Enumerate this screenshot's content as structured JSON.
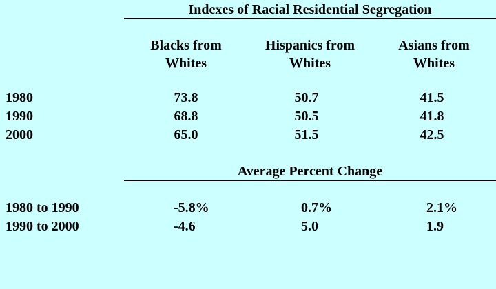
{
  "section1": {
    "title": "Indexes of Racial Residential Segregation",
    "columns": [
      [
        "Blacks from",
        "Whites"
      ],
      [
        "Hispanics from",
        "Whites"
      ],
      [
        "Asians from",
        "Whites"
      ]
    ],
    "rows": [
      {
        "label": "1980",
        "values": [
          "73.8",
          "50.7",
          "41.5"
        ]
      },
      {
        "label": "1990",
        "values": [
          "68.8",
          "50.5",
          "41.8"
        ]
      },
      {
        "label": "2000",
        "values": [
          "65.0",
          "51.5",
          "42.5"
        ]
      }
    ]
  },
  "section2": {
    "title": "Average Percent Change",
    "rows": [
      {
        "label": "1980 to 1990",
        "values": [
          "-5.8%",
          "0.7%",
          "2.1%"
        ]
      },
      {
        "label": "1990 to 2000",
        "values": [
          "-4.6",
          "5.0",
          "1.9"
        ]
      }
    ]
  }
}
